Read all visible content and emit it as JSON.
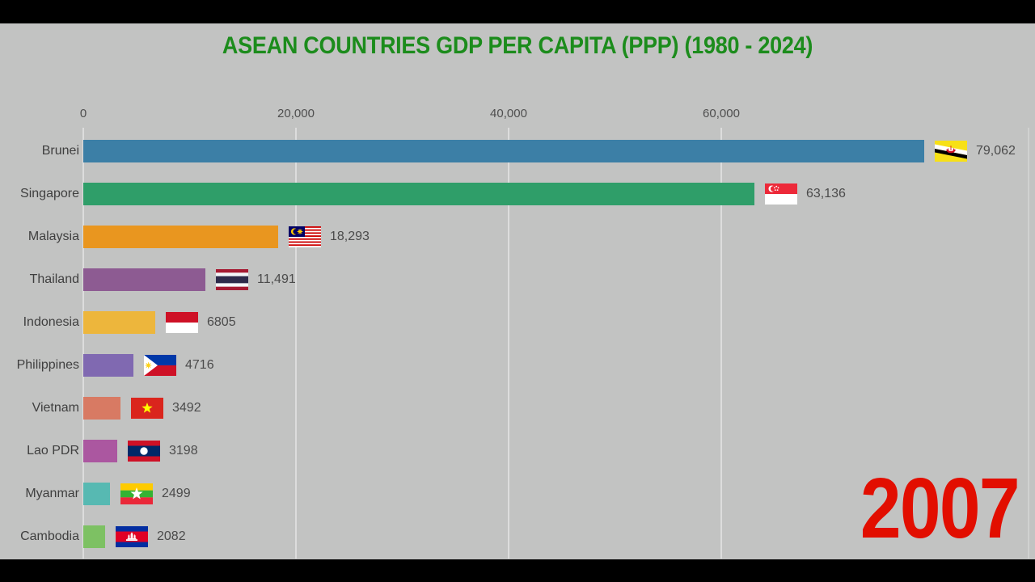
{
  "colors": {
    "background": "#c2c3c2",
    "letterbox": "#000000",
    "title_text": "#1c8c1c",
    "year_text": "#e20e00",
    "axis_text": "#4f4f4f",
    "label_text": "#3f3f3f",
    "value_text": "#4b4b4b",
    "gridline": "#dddddd"
  },
  "chart_data": {
    "type": "bar",
    "orientation": "horizontal",
    "title": "ASEAN COUNTRIES GDP PER CAPITA (PPP) (1980 - 2024)",
    "year": "2007",
    "x_axis": {
      "ticks": [
        0,
        20000,
        40000,
        60000
      ],
      "tick_labels": [
        "0",
        "20,000",
        "40,000",
        "60,000"
      ],
      "range": [
        0,
        89000
      ],
      "gridlines": true
    },
    "legend": "none",
    "countries": [
      {
        "name": "Brunei",
        "value": 79062,
        "value_label": "79,062",
        "color": "#3c7fa6",
        "flag": "brunei"
      },
      {
        "name": "Singapore",
        "value": 63136,
        "value_label": "63,136",
        "color": "#2f9e69",
        "flag": "singapore"
      },
      {
        "name": "Malaysia",
        "value": 18293,
        "value_label": "18,293",
        "color": "#e9961f",
        "flag": "malaysia"
      },
      {
        "name": "Thailand",
        "value": 11491,
        "value_label": "11,491",
        "color": "#8d5b92",
        "flag": "thailand"
      },
      {
        "name": "Indonesia",
        "value": 6805,
        "value_label": "6805",
        "color": "#edb63c",
        "flag": "indonesia"
      },
      {
        "name": "Philippines",
        "value": 4716,
        "value_label": "4716",
        "color": "#8069b1",
        "flag": "philippines"
      },
      {
        "name": "Vietnam",
        "value": 3492,
        "value_label": "3492",
        "color": "#d87a63",
        "flag": "vietnam"
      },
      {
        "name": "Lao PDR",
        "value": 3198,
        "value_label": "3198",
        "color": "#ab57a0",
        "flag": "laos"
      },
      {
        "name": "Myanmar",
        "value": 2499,
        "value_label": "2499",
        "color": "#57b9b2",
        "flag": "myanmar"
      },
      {
        "name": "Cambodia",
        "value": 2082,
        "value_label": "2082",
        "color": "#7dc163",
        "flag": "cambodia"
      }
    ]
  }
}
